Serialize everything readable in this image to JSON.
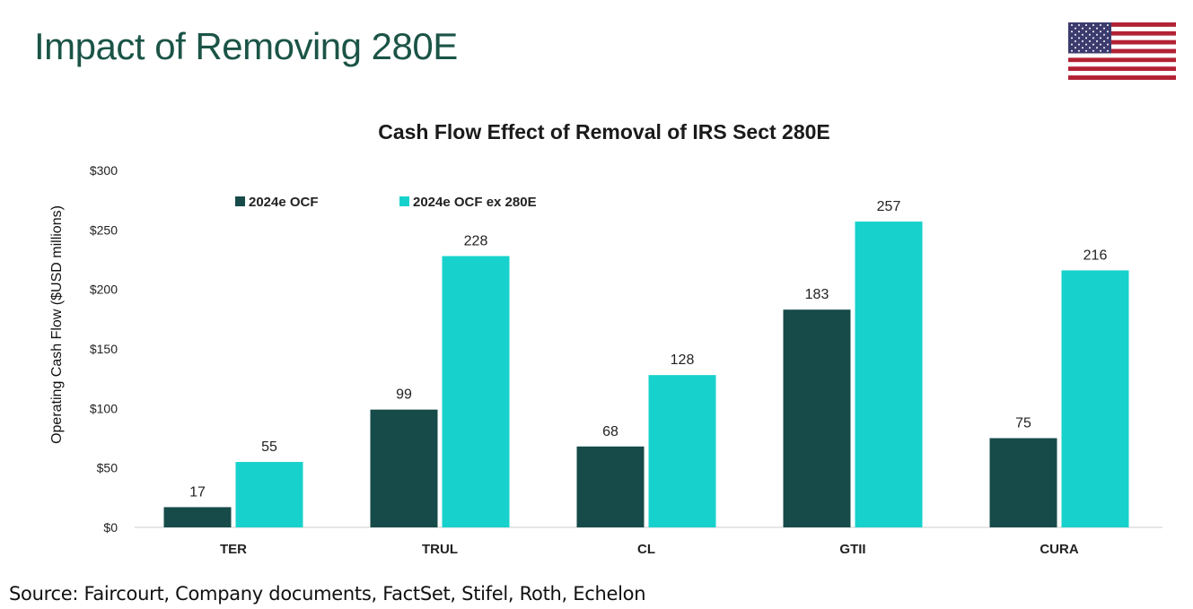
{
  "page": {
    "title": "Impact of Removing 280E",
    "source": "Source: Faircourt, Company documents, FactSet, Stifel, Roth, Echelon"
  },
  "icons": {
    "flag": "us-flag-icon"
  },
  "colors": {
    "title": "#1b5447",
    "series_dark": "#174b4a",
    "series_light": "#17d2cc",
    "flag_red": "#b22234",
    "flag_blue": "#3c3b6e"
  },
  "chart_data": {
    "type": "bar",
    "title": "Cash Flow Effect of Removal of IRS Sect 280E",
    "ylabel": "Operating Cash Flow ($USD millions)",
    "xlabel": "",
    "categories": [
      "TER",
      "TRUL",
      "CL",
      "GTII",
      "CURA"
    ],
    "series": [
      {
        "name": "2024e OCF",
        "values": [
          17,
          99,
          68,
          183,
          75
        ]
      },
      {
        "name": "2024e OCF ex 280E",
        "values": [
          55,
          228,
          128,
          257,
          216
        ]
      }
    ],
    "ylim": [
      0,
      300
    ],
    "yticks": [
      0,
      50,
      100,
      150,
      200,
      250,
      300
    ],
    "ytick_labels": [
      "$0",
      "$50",
      "$100",
      "$150",
      "$200",
      "$250",
      "$300"
    ],
    "grid": false,
    "legend": "top-left",
    "data_labels": true
  }
}
